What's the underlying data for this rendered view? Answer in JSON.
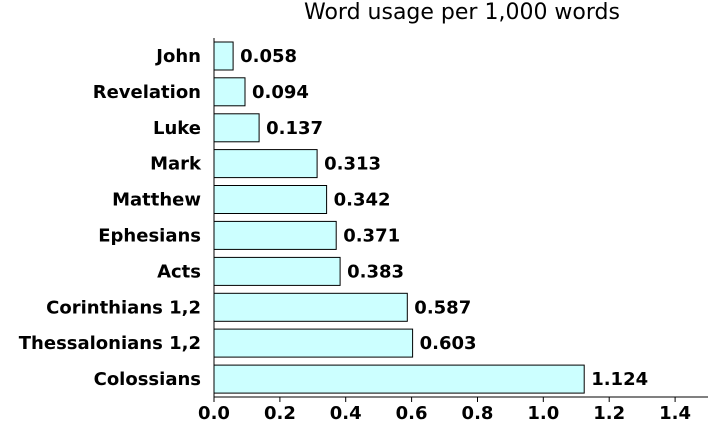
{
  "chart_data": {
    "type": "bar",
    "orientation": "horizontal",
    "title": "Word usage per 1,000 words",
    "categories": [
      "John",
      "Revelation",
      "Luke",
      "Mark",
      "Matthew",
      "Ephesians",
      "Acts",
      "Corinthians 1,2",
      "Thessalonians 1,2",
      "Colossians"
    ],
    "values": [
      0.058,
      0.094,
      0.137,
      0.313,
      0.342,
      0.371,
      0.383,
      0.587,
      0.603,
      1.124
    ],
    "value_labels": [
      "0.058",
      "0.094",
      "0.137",
      "0.313",
      "0.342",
      "0.371",
      "0.383",
      "0.587",
      "0.603",
      "1.124"
    ],
    "xlabel": "",
    "ylabel": "",
    "xlim": [
      0,
      1.5
    ],
    "xticks": [
      "0.0",
      "0.2",
      "0.4",
      "0.6",
      "0.8",
      "1.0",
      "1.2",
      "1.4"
    ],
    "grid": false,
    "bar_color": "#ccffff"
  }
}
